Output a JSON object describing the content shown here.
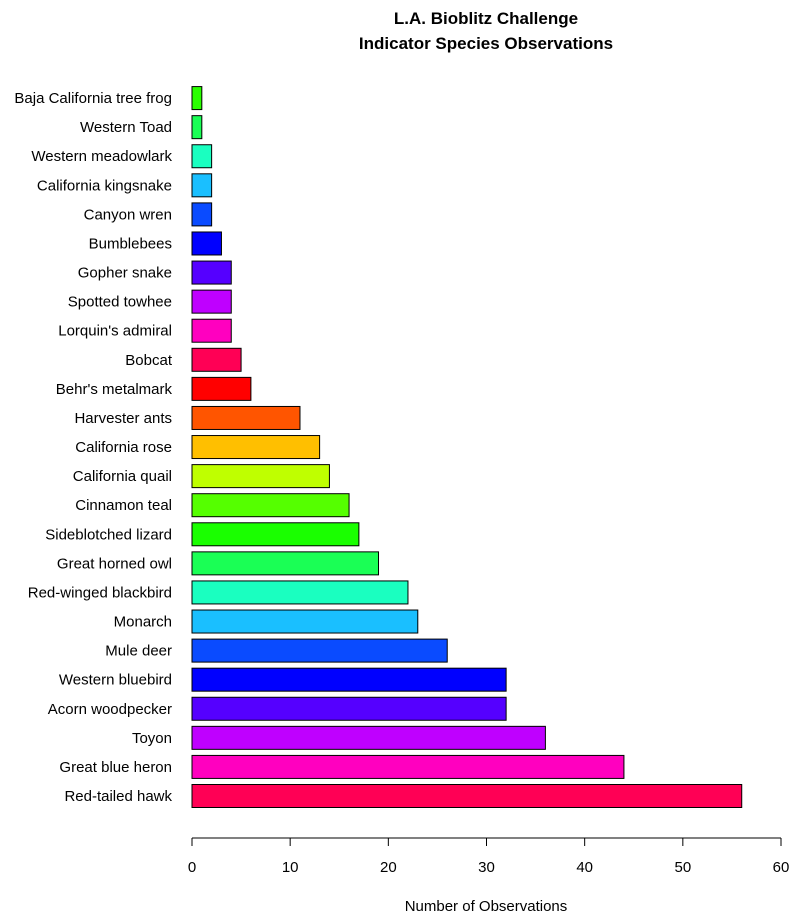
{
  "chart_data": {
    "type": "bar",
    "orientation": "horizontal",
    "title": [
      "L.A. Bioblitz Challenge",
      "Indicator Species Observations"
    ],
    "xlabel": "Number of Observations",
    "ylabel": "",
    "xlim": [
      0,
      60
    ],
    "xticks": [
      0,
      10,
      20,
      30,
      40,
      50,
      60
    ],
    "grid": false,
    "categories": [
      "Red-tailed hawk",
      "Great blue heron",
      "Toyon",
      "Acorn woodpecker",
      "Western bluebird",
      "Mule deer",
      "Monarch",
      "Red-winged blackbird",
      "Great horned owl",
      "Sideblotched lizard",
      "Cinnamon teal",
      "California quail",
      "California rose",
      "Harvester ants",
      "Behr's metalmark",
      "Bobcat",
      "Lorquin's admiral",
      "Spotted towhee",
      "Gopher snake",
      "Bumblebees",
      "Canyon wren",
      "California kingsnake",
      "Western meadowlark",
      "Western Toad",
      "Baja California tree frog"
    ],
    "values": [
      56,
      44,
      36,
      32,
      32,
      26,
      23,
      22,
      19,
      17,
      16,
      14,
      13,
      11,
      6,
      5,
      4,
      4,
      4,
      3,
      2,
      2,
      2,
      1,
      1
    ],
    "colors": [
      "#FF0055",
      "#FF00BF",
      "#BF00FF",
      "#5500FF",
      "#0000FF",
      "#0A4BFF",
      "#1ABFFF",
      "#1AFFC0",
      "#1AFF55",
      "#1AFF00",
      "#55FF00",
      "#BFFF00",
      "#FFBF00",
      "#FF5500",
      "#FF0000",
      "#FF0055",
      "#FF00BF",
      "#BF00FF",
      "#5500FF",
      "#0000FF",
      "#0A4BFF",
      "#1ABFFF",
      "#1AFFC0",
      "#1AFF55",
      "#2AFF00"
    ]
  }
}
